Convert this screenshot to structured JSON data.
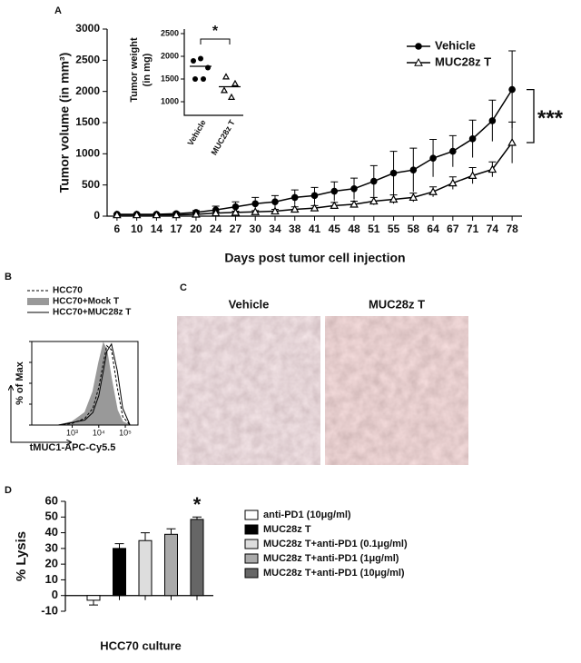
{
  "panel_labels": [
    "A",
    "B",
    "C",
    "D"
  ],
  "chart_data": [
    {
      "type": "line",
      "xlabel": "Days post tumor cell injection",
      "ylabel": "Tumor volume (in mm³)",
      "categories": [
        "6",
        "10",
        "14",
        "17",
        "20",
        "24",
        "27",
        "30",
        "34",
        "38",
        "41",
        "45",
        "48",
        "51",
        "55",
        "58",
        "64",
        "67",
        "71",
        "74",
        "78"
      ],
      "ylim": [
        0,
        3000
      ],
      "yticks": [
        0,
        500,
        1000,
        1500,
        2000,
        2500,
        3000
      ],
      "legend": "upper right",
      "annotation": "***",
      "series": [
        {
          "name": "Vehicle",
          "color": "#000000",
          "marker": "circle",
          "values": [
            30,
            30,
            30,
            40,
            60,
            100,
            150,
            200,
            230,
            300,
            330,
            400,
            440,
            560,
            690,
            740,
            930,
            1040,
            1240,
            1530,
            2030
          ],
          "errors": [
            10,
            10,
            10,
            20,
            30,
            60,
            80,
            100,
            100,
            120,
            130,
            150,
            170,
            250,
            350,
            350,
            300,
            250,
            300,
            330,
            620
          ]
        },
        {
          "name": "MUC28z T",
          "color": "#000000",
          "marker": "triangle",
          "values": [
            20,
            20,
            20,
            20,
            30,
            50,
            60,
            70,
            80,
            110,
            130,
            170,
            190,
            240,
            270,
            300,
            390,
            530,
            650,
            750,
            1180
          ],
          "errors": [
            5,
            5,
            5,
            10,
            10,
            20,
            20,
            20,
            30,
            40,
            40,
            50,
            50,
            60,
            70,
            70,
            80,
            100,
            130,
            120,
            330
          ]
        }
      ]
    },
    {
      "type": "scatter",
      "ylabel": [
        "Tumor weight",
        "(in mg)"
      ],
      "categories": [
        "Vehicle",
        "MUC28z T"
      ],
      "ylim": [
        700,
        2700
      ],
      "yticks": [
        1000,
        1500,
        2000,
        2500
      ],
      "annotation": "*",
      "series": [
        {
          "name": "Vehicle",
          "marker": "circle",
          "values": [
            1900,
            1950,
            1750,
            1500,
            1500
          ],
          "mean": 1780
        },
        {
          "name": "MUC28z T",
          "marker": "triangle",
          "values": [
            1550,
            1400,
            1250,
            1100
          ],
          "mean": 1330
        }
      ]
    },
    {
      "type": "line",
      "xlabel": "tMUC1-APC-Cy5.5",
      "ylabel": "% of Max",
      "log_x": true,
      "xlim": [
        30,
        300000
      ],
      "xticks": [
        {
          "value": 1000,
          "label": "10³"
        },
        {
          "value": 10000,
          "label": "10⁴"
        },
        {
          "value": 100000,
          "label": "10⁵"
        }
      ],
      "ylim": [
        0,
        100
      ],
      "series": [
        {
          "name": "HCC70",
          "style": "dashed",
          "color": "#000000",
          "x": [
            300,
            1000,
            3000,
            6000,
            10000,
            15000,
            20000,
            30000,
            50000,
            80000,
            150000
          ],
          "values": [
            0,
            2,
            8,
            20,
            45,
            75,
            95,
            90,
            45,
            10,
            0
          ]
        },
        {
          "name": "HCC70+Mock T",
          "style": "filled",
          "color": "#999999",
          "x": [
            300,
            1000,
            3000,
            6000,
            10000,
            15000,
            20000,
            30000,
            50000,
            80000,
            150000
          ],
          "values": [
            0,
            4,
            15,
            40,
            75,
            98,
            90,
            55,
            18,
            4,
            0
          ]
        },
        {
          "name": "HCC70+MUC28z T",
          "style": "solid",
          "color": "#000000",
          "x": [
            300,
            1000,
            3000,
            6000,
            10000,
            15000,
            20000,
            30000,
            50000,
            80000,
            150000
          ],
          "values": [
            0,
            3,
            6,
            15,
            35,
            65,
            88,
            97,
            65,
            20,
            0
          ]
        }
      ]
    },
    {
      "type": "bar",
      "xlabel": "HCC70 culture",
      "ylabel": "% Lysis",
      "ylim": [
        -10,
        60
      ],
      "yticks": [
        -10,
        0,
        10,
        20,
        30,
        40,
        50,
        60
      ],
      "annotation": "*",
      "series": [
        {
          "name": "anti-PD1 (10μg/ml)",
          "color": "#ffffff",
          "value": -3,
          "error": 3
        },
        {
          "name": "MUC28z T",
          "color": "#000000",
          "value": 30,
          "error": 3
        },
        {
          "name": "MUC28z T+anti-PD1 (0.1μg/ml)",
          "color": "#dddddd",
          "value": 35,
          "error": 5
        },
        {
          "name": "MUC28z T+anti-PD1 (1μg/ml)",
          "color": "#aaaaaa",
          "value": 39,
          "error": 3.5
        },
        {
          "name": "MUC28z T+anti-PD1 (10μg/ml)",
          "color": "#666666",
          "value": 48.5,
          "error": 1.5
        }
      ]
    }
  ],
  "panel_c": {
    "images": [
      "Vehicle",
      "MUC28z T"
    ]
  }
}
